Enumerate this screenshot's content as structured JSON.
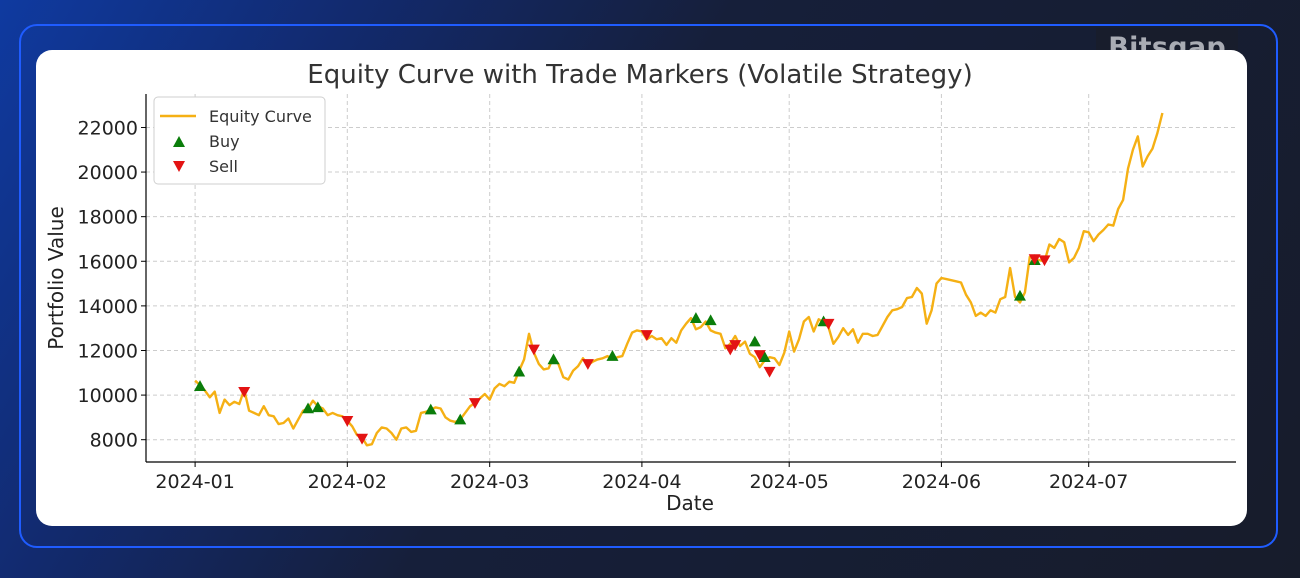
{
  "brand": {
    "name": "Bitsgap"
  },
  "chart_data": {
    "type": "line",
    "title": "Equity Curve with Trade Markers (Volatile Strategy)",
    "xlabel": "Date",
    "ylabel": "Portfolio Value",
    "x_ticks": [
      "2024-01",
      "2024-02",
      "2024-03",
      "2024-04",
      "2024-05",
      "2024-06",
      "2024-07"
    ],
    "y_ticks": [
      8000,
      10000,
      12000,
      14000,
      16000,
      18000,
      20000,
      22000
    ],
    "xlim": [
      "2023-12-22",
      "2024-07-31"
    ],
    "ylim": [
      7000,
      23500
    ],
    "grid": true,
    "legend_position": "upper-left",
    "colors": {
      "equity": "#f5b014",
      "buy": "#0a7d0a",
      "sell": "#e31313"
    },
    "series": [
      {
        "name": "Equity Curve",
        "points": [
          [
            "2024-01-01",
            10650
          ],
          [
            "2024-01-02",
            10450
          ],
          [
            "2024-01-03",
            10200
          ],
          [
            "2024-01-04",
            9900
          ],
          [
            "2024-01-05",
            10150
          ],
          [
            "2024-01-06",
            9200
          ],
          [
            "2024-01-07",
            9800
          ],
          [
            "2024-01-08",
            9550
          ],
          [
            "2024-01-09",
            9700
          ],
          [
            "2024-01-10",
            9600
          ],
          [
            "2024-01-11",
            10250
          ],
          [
            "2024-01-12",
            9300
          ],
          [
            "2024-01-13",
            9200
          ],
          [
            "2024-01-14",
            9100
          ],
          [
            "2024-01-15",
            9500
          ],
          [
            "2024-01-16",
            9100
          ],
          [
            "2024-01-17",
            9050
          ],
          [
            "2024-01-18",
            8700
          ],
          [
            "2024-01-19",
            8750
          ],
          [
            "2024-01-20",
            8950
          ],
          [
            "2024-01-21",
            8500
          ],
          [
            "2024-01-22",
            8900
          ],
          [
            "2024-01-23",
            9300
          ],
          [
            "2024-01-24",
            9400
          ],
          [
            "2024-01-25",
            9750
          ],
          [
            "2024-01-26",
            9500
          ],
          [
            "2024-01-27",
            9400
          ],
          [
            "2024-01-28",
            9100
          ],
          [
            "2024-01-29",
            9200
          ],
          [
            "2024-01-30",
            9100
          ],
          [
            "2024-01-31",
            9050
          ],
          [
            "2024-02-01",
            8850
          ],
          [
            "2024-02-02",
            8600
          ],
          [
            "2024-02-03",
            8200
          ],
          [
            "2024-02-04",
            8100
          ],
          [
            "2024-02-05",
            7750
          ],
          [
            "2024-02-06",
            7800
          ],
          [
            "2024-02-07",
            8300
          ],
          [
            "2024-02-08",
            8550
          ],
          [
            "2024-02-09",
            8500
          ],
          [
            "2024-02-10",
            8300
          ],
          [
            "2024-02-11",
            8000
          ],
          [
            "2024-02-12",
            8500
          ],
          [
            "2024-02-13",
            8550
          ],
          [
            "2024-02-14",
            8350
          ],
          [
            "2024-02-15",
            8400
          ],
          [
            "2024-02-16",
            9200
          ],
          [
            "2024-02-17",
            9250
          ],
          [
            "2024-02-18",
            9350
          ],
          [
            "2024-02-19",
            9450
          ],
          [
            "2024-02-20",
            9400
          ],
          [
            "2024-02-21",
            9000
          ],
          [
            "2024-02-22",
            8850
          ],
          [
            "2024-02-23",
            8800
          ],
          [
            "2024-02-24",
            8900
          ],
          [
            "2024-02-25",
            9200
          ],
          [
            "2024-02-26",
            9500
          ],
          [
            "2024-02-27",
            9650
          ],
          [
            "2024-02-28",
            9850
          ],
          [
            "2024-02-29",
            10050
          ],
          [
            "2024-03-01",
            9800
          ],
          [
            "2024-03-02",
            10300
          ],
          [
            "2024-03-03",
            10500
          ],
          [
            "2024-03-04",
            10400
          ],
          [
            "2024-03-05",
            10600
          ],
          [
            "2024-03-06",
            10550
          ],
          [
            "2024-03-07",
            11100
          ],
          [
            "2024-03-08",
            11600
          ],
          [
            "2024-03-09",
            12750
          ],
          [
            "2024-03-10",
            11900
          ],
          [
            "2024-03-11",
            11400
          ],
          [
            "2024-03-12",
            11150
          ],
          [
            "2024-03-13",
            11200
          ],
          [
            "2024-03-14",
            11700
          ],
          [
            "2024-03-15",
            11400
          ],
          [
            "2024-03-16",
            10800
          ],
          [
            "2024-03-17",
            10700
          ],
          [
            "2024-03-18",
            11100
          ],
          [
            "2024-03-19",
            11300
          ],
          [
            "2024-03-20",
            11650
          ],
          [
            "2024-03-21",
            11350
          ],
          [
            "2024-03-22",
            11500
          ],
          [
            "2024-03-23",
            11600
          ],
          [
            "2024-03-24",
            11650
          ],
          [
            "2024-03-25",
            11750
          ],
          [
            "2024-03-26",
            11600
          ],
          [
            "2024-03-27",
            11700
          ],
          [
            "2024-03-28",
            11750
          ],
          [
            "2024-03-29",
            12300
          ],
          [
            "2024-03-30",
            12800
          ],
          [
            "2024-03-31",
            12900
          ],
          [
            "2024-04-01",
            12850
          ],
          [
            "2024-04-02",
            12500
          ],
          [
            "2024-04-03",
            12650
          ],
          [
            "2024-04-04",
            12500
          ],
          [
            "2024-04-05",
            12550
          ],
          [
            "2024-04-06",
            12250
          ],
          [
            "2024-04-07",
            12550
          ],
          [
            "2024-04-08",
            12350
          ],
          [
            "2024-04-09",
            12900
          ],
          [
            "2024-04-10",
            13200
          ],
          [
            "2024-04-11",
            13450
          ],
          [
            "2024-04-12",
            12950
          ],
          [
            "2024-04-13",
            13050
          ],
          [
            "2024-04-14",
            13300
          ],
          [
            "2024-04-15",
            12900
          ],
          [
            "2024-04-16",
            12800
          ],
          [
            "2024-04-17",
            12750
          ],
          [
            "2024-04-18",
            12100
          ],
          [
            "2024-04-19",
            12300
          ],
          [
            "2024-04-20",
            12650
          ],
          [
            "2024-04-21",
            12200
          ],
          [
            "2024-04-22",
            12400
          ],
          [
            "2024-04-23",
            11850
          ],
          [
            "2024-04-24",
            11700
          ],
          [
            "2024-04-25",
            11250
          ],
          [
            "2024-04-26",
            11550
          ],
          [
            "2024-04-27",
            11700
          ],
          [
            "2024-04-28",
            11650
          ],
          [
            "2024-04-29",
            11350
          ],
          [
            "2024-04-30",
            11900
          ],
          [
            "2024-05-01",
            12850
          ],
          [
            "2024-05-02",
            11950
          ],
          [
            "2024-05-03",
            12500
          ],
          [
            "2024-05-04",
            13300
          ],
          [
            "2024-05-05",
            13500
          ],
          [
            "2024-05-06",
            12850
          ],
          [
            "2024-05-07",
            13400
          ],
          [
            "2024-05-08",
            13250
          ],
          [
            "2024-05-09",
            13050
          ],
          [
            "2024-05-10",
            12300
          ],
          [
            "2024-05-11",
            12600
          ],
          [
            "2024-05-12",
            13000
          ],
          [
            "2024-05-13",
            12700
          ],
          [
            "2024-05-14",
            12950
          ],
          [
            "2024-05-15",
            12350
          ],
          [
            "2024-05-16",
            12750
          ],
          [
            "2024-05-17",
            12750
          ],
          [
            "2024-05-18",
            12650
          ],
          [
            "2024-05-19",
            12700
          ],
          [
            "2024-05-20",
            13100
          ],
          [
            "2024-05-21",
            13500
          ],
          [
            "2024-05-22",
            13800
          ],
          [
            "2024-05-23",
            13850
          ],
          [
            "2024-05-24",
            13950
          ],
          [
            "2024-05-25",
            14350
          ],
          [
            "2024-05-26",
            14400
          ],
          [
            "2024-05-27",
            14800
          ],
          [
            "2024-05-28",
            14550
          ],
          [
            "2024-05-29",
            13200
          ],
          [
            "2024-05-30",
            13800
          ],
          [
            "2024-05-31",
            15000
          ],
          [
            "2024-06-01",
            15250
          ],
          [
            "2024-06-02",
            15200
          ],
          [
            "2024-06-03",
            15150
          ],
          [
            "2024-06-04",
            15100
          ],
          [
            "2024-06-05",
            15050
          ],
          [
            "2024-06-06",
            14500
          ],
          [
            "2024-06-07",
            14150
          ],
          [
            "2024-06-08",
            13550
          ],
          [
            "2024-06-09",
            13700
          ],
          [
            "2024-06-10",
            13550
          ],
          [
            "2024-06-11",
            13800
          ],
          [
            "2024-06-12",
            13700
          ],
          [
            "2024-06-13",
            14300
          ],
          [
            "2024-06-14",
            14400
          ],
          [
            "2024-06-15",
            15700
          ],
          [
            "2024-06-16",
            14400
          ],
          [
            "2024-06-17",
            14150
          ],
          [
            "2024-06-18",
            14600
          ],
          [
            "2024-06-19",
            16200
          ],
          [
            "2024-06-20",
            16100
          ],
          [
            "2024-06-21",
            16050
          ],
          [
            "2024-06-22",
            16000
          ],
          [
            "2024-06-23",
            16750
          ],
          [
            "2024-06-24",
            16600
          ],
          [
            "2024-06-25",
            17000
          ],
          [
            "2024-06-26",
            16850
          ],
          [
            "2024-06-27",
            15950
          ],
          [
            "2024-06-28",
            16150
          ],
          [
            "2024-06-29",
            16600
          ],
          [
            "2024-06-30",
            17350
          ],
          [
            "2024-07-01",
            17300
          ],
          [
            "2024-07-02",
            16900
          ],
          [
            "2024-07-03",
            17200
          ],
          [
            "2024-07-04",
            17400
          ],
          [
            "2024-07-05",
            17650
          ],
          [
            "2024-07-06",
            17600
          ],
          [
            "2024-07-07",
            18350
          ],
          [
            "2024-07-08",
            18750
          ],
          [
            "2024-07-09",
            20150
          ],
          [
            "2024-07-10",
            21000
          ],
          [
            "2024-07-11",
            21600
          ],
          [
            "2024-07-12",
            20250
          ],
          [
            "2024-07-13",
            20700
          ],
          [
            "2024-07-14",
            21050
          ],
          [
            "2024-07-15",
            21750
          ],
          [
            "2024-07-16",
            22650
          ]
        ]
      },
      {
        "name": "Buy",
        "marker": "triangle-up",
        "points": [
          [
            "2024-01-02",
            10400
          ],
          [
            "2024-01-24",
            9400
          ],
          [
            "2024-01-26",
            9450
          ],
          [
            "2024-02-18",
            9350
          ],
          [
            "2024-02-24",
            8900
          ],
          [
            "2024-03-07",
            11050
          ],
          [
            "2024-03-14",
            11600
          ],
          [
            "2024-03-26",
            11750
          ],
          [
            "2024-04-12",
            13450
          ],
          [
            "2024-04-15",
            13350
          ],
          [
            "2024-04-24",
            12400
          ],
          [
            "2024-04-26",
            11700
          ],
          [
            "2024-05-08",
            13300
          ],
          [
            "2024-06-17",
            14450
          ],
          [
            "2024-06-20",
            16050
          ]
        ]
      },
      {
        "name": "Sell",
        "marker": "triangle-down",
        "points": [
          [
            "2024-01-11",
            10150
          ],
          [
            "2024-02-01",
            8850
          ],
          [
            "2024-02-04",
            8050
          ],
          [
            "2024-02-27",
            9650
          ],
          [
            "2024-03-10",
            12050
          ],
          [
            "2024-03-21",
            11400
          ],
          [
            "2024-04-02",
            12700
          ],
          [
            "2024-04-19",
            12050
          ],
          [
            "2024-04-20",
            12250
          ],
          [
            "2024-04-25",
            11800
          ],
          [
            "2024-04-27",
            11050
          ],
          [
            "2024-05-09",
            13200
          ],
          [
            "2024-06-20",
            16100
          ],
          [
            "2024-06-22",
            16050
          ]
        ]
      }
    ]
  }
}
